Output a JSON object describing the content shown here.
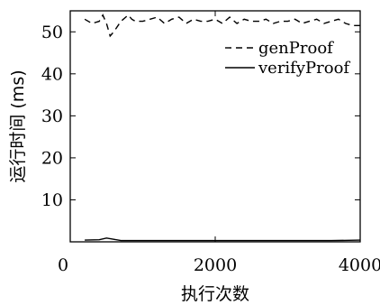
{
  "chart_data": {
    "type": "line",
    "title": "",
    "xlabel": "执行次数",
    "ylabel": "运行时间 (ms)",
    "xlim": [
      0,
      4000
    ],
    "ylim": [
      0,
      55
    ],
    "xticks": [
      0,
      2000,
      4000
    ],
    "yticks": [
      10,
      20,
      30,
      40,
      50
    ],
    "grid": false,
    "legend_position": "top-right",
    "series": [
      {
        "name": "genProof",
        "style": "dashed",
        "x": [
          200,
          300,
          400,
          450,
          500,
          550,
          600,
          700,
          800,
          850,
          900,
          1000,
          1100,
          1200,
          1300,
          1400,
          1500,
          1600,
          1700,
          1800,
          1900,
          2000,
          2100,
          2200,
          2300,
          2400,
          2500,
          2600,
          2700,
          2800,
          2900,
          3000,
          3100,
          3200,
          3300,
          3400,
          3500,
          3600,
          3700,
          3800,
          3900,
          4000
        ],
        "y": [
          53,
          52,
          52.5,
          54,
          52,
          49,
          50,
          52.5,
          54,
          53,
          52.5,
          52.5,
          53,
          53.5,
          52,
          53,
          53.5,
          52,
          53,
          52.5,
          52.5,
          53,
          52,
          53.5,
          52,
          53,
          52.5,
          52.5,
          53,
          52,
          52.5,
          52.5,
          53,
          52,
          52.5,
          53,
          52,
          52.5,
          53,
          52,
          51.5,
          51.5
        ]
      },
      {
        "name": "verifyProof",
        "style": "solid",
        "x": [
          200,
          400,
          500,
          600,
          700,
          800,
          1200,
          1600,
          2000,
          2400,
          2800,
          3200,
          3600,
          4000
        ],
        "y": [
          0.4,
          0.5,
          0.9,
          0.6,
          0.3,
          0.3,
          0.3,
          0.3,
          0.3,
          0.3,
          0.3,
          0.3,
          0.3,
          0.4
        ]
      }
    ]
  }
}
